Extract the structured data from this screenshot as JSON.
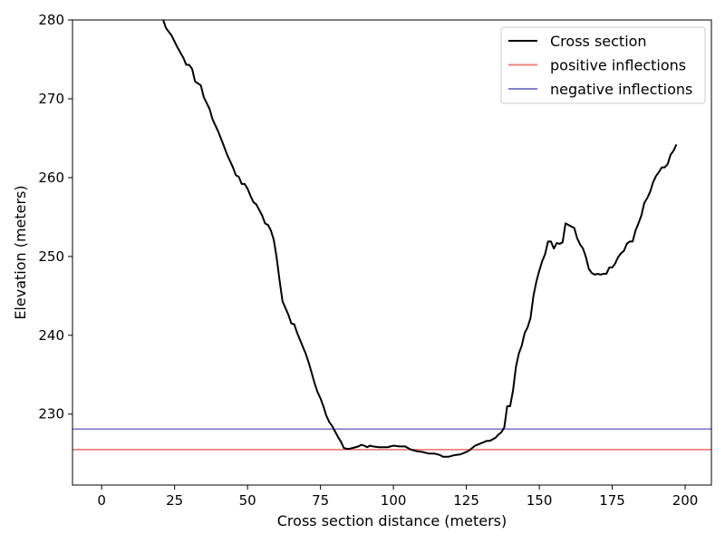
{
  "chart_data": {
    "type": "line",
    "title": "",
    "xlabel": "Cross section distance (meters)",
    "ylabel": "Elevation (meters)",
    "xlim": [
      -10,
      209
    ],
    "ylim": [
      221,
      280
    ],
    "xticks": [
      0,
      25,
      50,
      75,
      100,
      125,
      150,
      175,
      200
    ],
    "yticks": [
      230,
      240,
      250,
      260,
      270,
      280
    ],
    "grid": false,
    "legend_position": "top-right",
    "series": [
      {
        "name": "Cross section",
        "color": "#000000",
        "points": [
          [
            21,
            280.1
          ],
          [
            22,
            279.0
          ],
          [
            24,
            278.0
          ],
          [
            26,
            276.5
          ],
          [
            28,
            275.2
          ],
          [
            29,
            274.3
          ],
          [
            30,
            274.3
          ],
          [
            31,
            273.8
          ],
          [
            32,
            272.2
          ],
          [
            34,
            271.7
          ],
          [
            35,
            270.2
          ],
          [
            37,
            268.7
          ],
          [
            38,
            267.4
          ],
          [
            40,
            265.8
          ],
          [
            42,
            263.9
          ],
          [
            43,
            262.9
          ],
          [
            45,
            261.3
          ],
          [
            46,
            260.3
          ],
          [
            47,
            260.1
          ],
          [
            48,
            259.2
          ],
          [
            49,
            259.2
          ],
          [
            50,
            258.6
          ],
          [
            51,
            257.7
          ],
          [
            52,
            256.9
          ],
          [
            53,
            256.6
          ],
          [
            55,
            255.2
          ],
          [
            56,
            254.2
          ],
          [
            57,
            254.0
          ],
          [
            58,
            253.3
          ],
          [
            59,
            252.1
          ],
          [
            60,
            249.8
          ],
          [
            61,
            246.9
          ],
          [
            62,
            244.3
          ],
          [
            64,
            242.6
          ],
          [
            65,
            241.5
          ],
          [
            66,
            241.4
          ],
          [
            67,
            240.3
          ],
          [
            68,
            239.4
          ],
          [
            70,
            237.6
          ],
          [
            71,
            236.5
          ],
          [
            72,
            235.2
          ],
          [
            73,
            233.9
          ],
          [
            74,
            232.8
          ],
          [
            75,
            232.0
          ],
          [
            76,
            231.0
          ],
          [
            77,
            229.8
          ],
          [
            78,
            229.0
          ],
          [
            79,
            228.5
          ],
          [
            80,
            227.8
          ],
          [
            81,
            227.1
          ],
          [
            82,
            226.5
          ],
          [
            83,
            225.7
          ],
          [
            84,
            225.6
          ],
          [
            85,
            225.6
          ],
          [
            86,
            225.7
          ],
          [
            88,
            225.9
          ],
          [
            89,
            226.1
          ],
          [
            90,
            226.0
          ],
          [
            91,
            225.8
          ],
          [
            92,
            226.0
          ],
          [
            93,
            225.9
          ],
          [
            95,
            225.8
          ],
          [
            96,
            225.8
          ],
          [
            98,
            225.8
          ],
          [
            99,
            225.9
          ],
          [
            100,
            226.0
          ],
          [
            102,
            225.9
          ],
          [
            104,
            225.9
          ],
          [
            106,
            225.5
          ],
          [
            108,
            225.3
          ],
          [
            110,
            225.2
          ],
          [
            112,
            225.0
          ],
          [
            114,
            225.0
          ],
          [
            116,
            224.8
          ],
          [
            117,
            224.6
          ],
          [
            119,
            224.6
          ],
          [
            121,
            224.8
          ],
          [
            123,
            224.9
          ],
          [
            125,
            225.2
          ],
          [
            126,
            225.4
          ],
          [
            127,
            225.7
          ],
          [
            128,
            226.0
          ],
          [
            130,
            226.3
          ],
          [
            132,
            226.6
          ],
          [
            133,
            226.6
          ],
          [
            135,
            227.0
          ],
          [
            136,
            227.4
          ],
          [
            137,
            227.7
          ],
          [
            138,
            228.3
          ],
          [
            139,
            231.0
          ],
          [
            140,
            231.0
          ],
          [
            141,
            233.0
          ],
          [
            142,
            236.0
          ],
          [
            143,
            237.7
          ],
          [
            144,
            238.7
          ],
          [
            145,
            240.3
          ],
          [
            146,
            241.0
          ],
          [
            147,
            242.2
          ],
          [
            148,
            245.0
          ],
          [
            149,
            246.8
          ],
          [
            150,
            248.2
          ],
          [
            151,
            249.4
          ],
          [
            152,
            250.3
          ],
          [
            153,
            251.9
          ],
          [
            154,
            251.9
          ],
          [
            155,
            251.0
          ],
          [
            156,
            251.7
          ],
          [
            157,
            251.6
          ],
          [
            158,
            251.8
          ],
          [
            159,
            254.2
          ],
          [
            160,
            254.0
          ],
          [
            161,
            253.8
          ],
          [
            162,
            253.6
          ],
          [
            163,
            252.3
          ],
          [
            164,
            251.5
          ],
          [
            165,
            251.0
          ],
          [
            166,
            249.9
          ],
          [
            167,
            248.4
          ],
          [
            168,
            247.9
          ],
          [
            169,
            247.7
          ],
          [
            170,
            247.8
          ],
          [
            171,
            247.7
          ],
          [
            172,
            247.8
          ],
          [
            173,
            247.8
          ],
          [
            174,
            248.6
          ],
          [
            175,
            248.6
          ],
          [
            176,
            249.1
          ],
          [
            177,
            249.9
          ],
          [
            178,
            250.4
          ],
          [
            179,
            250.7
          ],
          [
            180,
            251.6
          ],
          [
            181,
            251.9
          ],
          [
            182,
            251.9
          ],
          [
            183,
            253.3
          ],
          [
            184,
            254.2
          ],
          [
            185,
            255.2
          ],
          [
            186,
            256.8
          ],
          [
            187,
            257.4
          ],
          [
            188,
            258.2
          ],
          [
            189,
            259.4
          ],
          [
            190,
            260.2
          ],
          [
            191,
            260.7
          ],
          [
            192,
            261.3
          ],
          [
            193,
            261.3
          ],
          [
            194,
            261.7
          ],
          [
            195,
            262.9
          ],
          [
            196,
            263.4
          ],
          [
            197,
            264.2
          ]
        ]
      },
      {
        "name": "positive inflections",
        "color": "#f08080",
        "hline": 225.5
      },
      {
        "name": "negative inflections",
        "color": "#8080cc",
        "hline": 228.1
      }
    ]
  }
}
